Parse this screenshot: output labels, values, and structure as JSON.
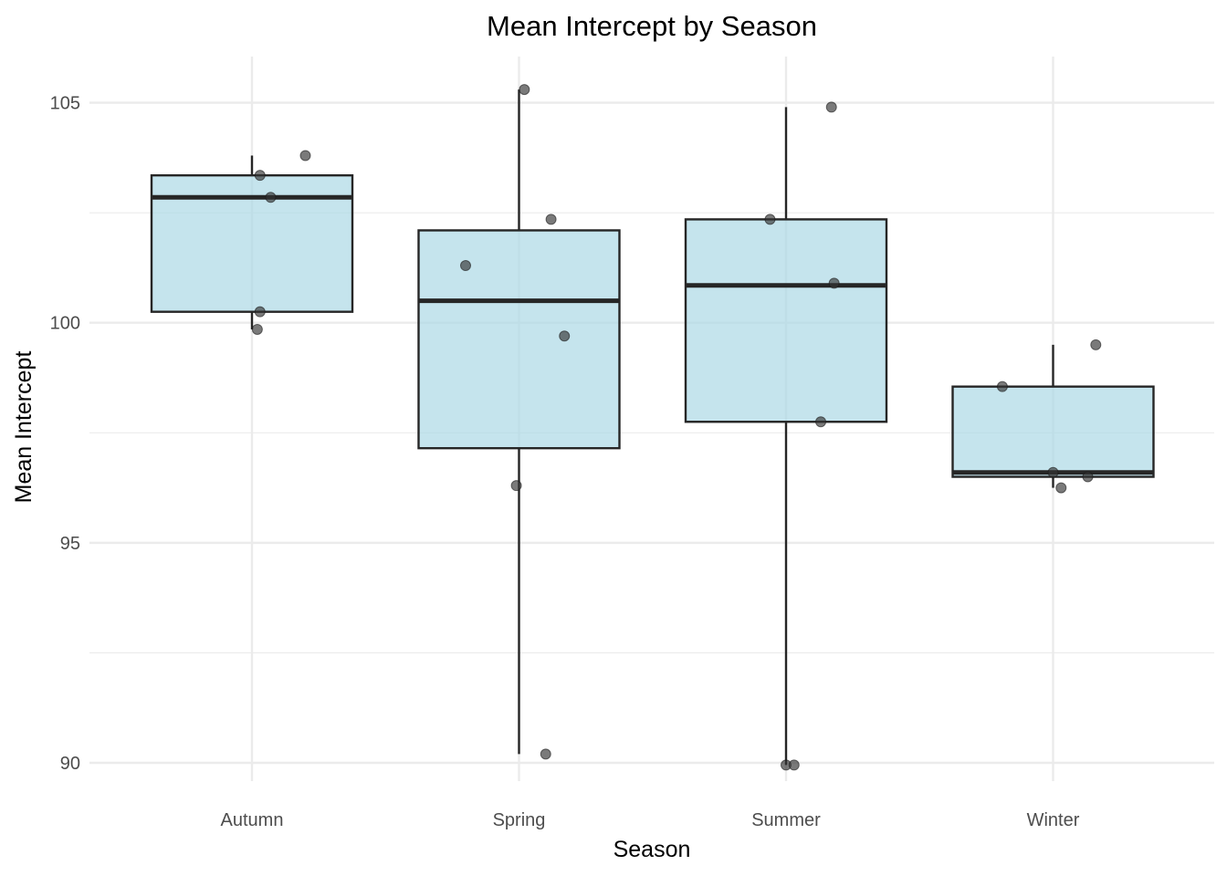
{
  "chart_data": {
    "type": "box",
    "title": "Mean Intercept by Season",
    "xlabel": "Season",
    "ylabel": "Mean Intercept",
    "categories": [
      "Autumn",
      "Spring",
      "Summer",
      "Winter"
    ],
    "ylim": [
      88.9,
      106.0
    ],
    "yticks": [
      90,
      95,
      100,
      105
    ],
    "yticks_labels": [
      "90",
      "95",
      "100",
      "105"
    ],
    "grid": true,
    "boxes": [
      {
        "category": "Autumn",
        "whisker_low": 99.85,
        "q1": 100.25,
        "median": 102.85,
        "q3": 103.35,
        "whisker_high": 103.8
      },
      {
        "category": "Spring",
        "whisker_low": 90.2,
        "q1": 97.15,
        "median": 100.5,
        "q3": 102.1,
        "whisker_high": 105.3
      },
      {
        "category": "Summer",
        "whisker_low": 89.95,
        "q1": 97.75,
        "median": 100.85,
        "q3": 102.35,
        "whisker_high": 104.9
      },
      {
        "category": "Winter",
        "whisker_low": 96.25,
        "q1": 96.5,
        "median": 96.6,
        "q3": 98.55,
        "whisker_high": 99.5
      }
    ],
    "points": [
      {
        "category": "Autumn",
        "jitter": 0.2,
        "y": 103.8
      },
      {
        "category": "Autumn",
        "jitter": 0.03,
        "y": 103.35
      },
      {
        "category": "Autumn",
        "jitter": 0.07,
        "y": 102.85
      },
      {
        "category": "Autumn",
        "jitter": 0.03,
        "y": 100.25
      },
      {
        "category": "Autumn",
        "jitter": 0.02,
        "y": 99.85
      },
      {
        "category": "Spring",
        "jitter": 0.02,
        "y": 105.3
      },
      {
        "category": "Spring",
        "jitter": 0.12,
        "y": 102.35
      },
      {
        "category": "Spring",
        "jitter": -0.2,
        "y": 101.3
      },
      {
        "category": "Spring",
        "jitter": 0.17,
        "y": 99.7
      },
      {
        "category": "Spring",
        "jitter": -0.01,
        "y": 96.3
      },
      {
        "category": "Spring",
        "jitter": 0.1,
        "y": 90.2
      },
      {
        "category": "Summer",
        "jitter": 0.17,
        "y": 104.9
      },
      {
        "category": "Summer",
        "jitter": -0.06,
        "y": 102.35
      },
      {
        "category": "Summer",
        "jitter": 0.18,
        "y": 100.9
      },
      {
        "category": "Summer",
        "jitter": 0.13,
        "y": 97.75
      },
      {
        "category": "Summer",
        "jitter": 0.0,
        "y": 89.95
      },
      {
        "category": "Summer",
        "jitter": 0.03,
        "y": 89.95
      },
      {
        "category": "Winter",
        "jitter": 0.16,
        "y": 99.5
      },
      {
        "category": "Winter",
        "jitter": -0.19,
        "y": 98.55
      },
      {
        "category": "Winter",
        "jitter": 0.0,
        "y": 96.6
      },
      {
        "category": "Winter",
        "jitter": 0.13,
        "y": 96.5
      },
      {
        "category": "Winter",
        "jitter": 0.03,
        "y": 96.25
      }
    ],
    "colors": {
      "box_fill": "#add8e6",
      "box_stroke": "#262626",
      "point": "#333333",
      "grid": "#ebebeb"
    }
  }
}
